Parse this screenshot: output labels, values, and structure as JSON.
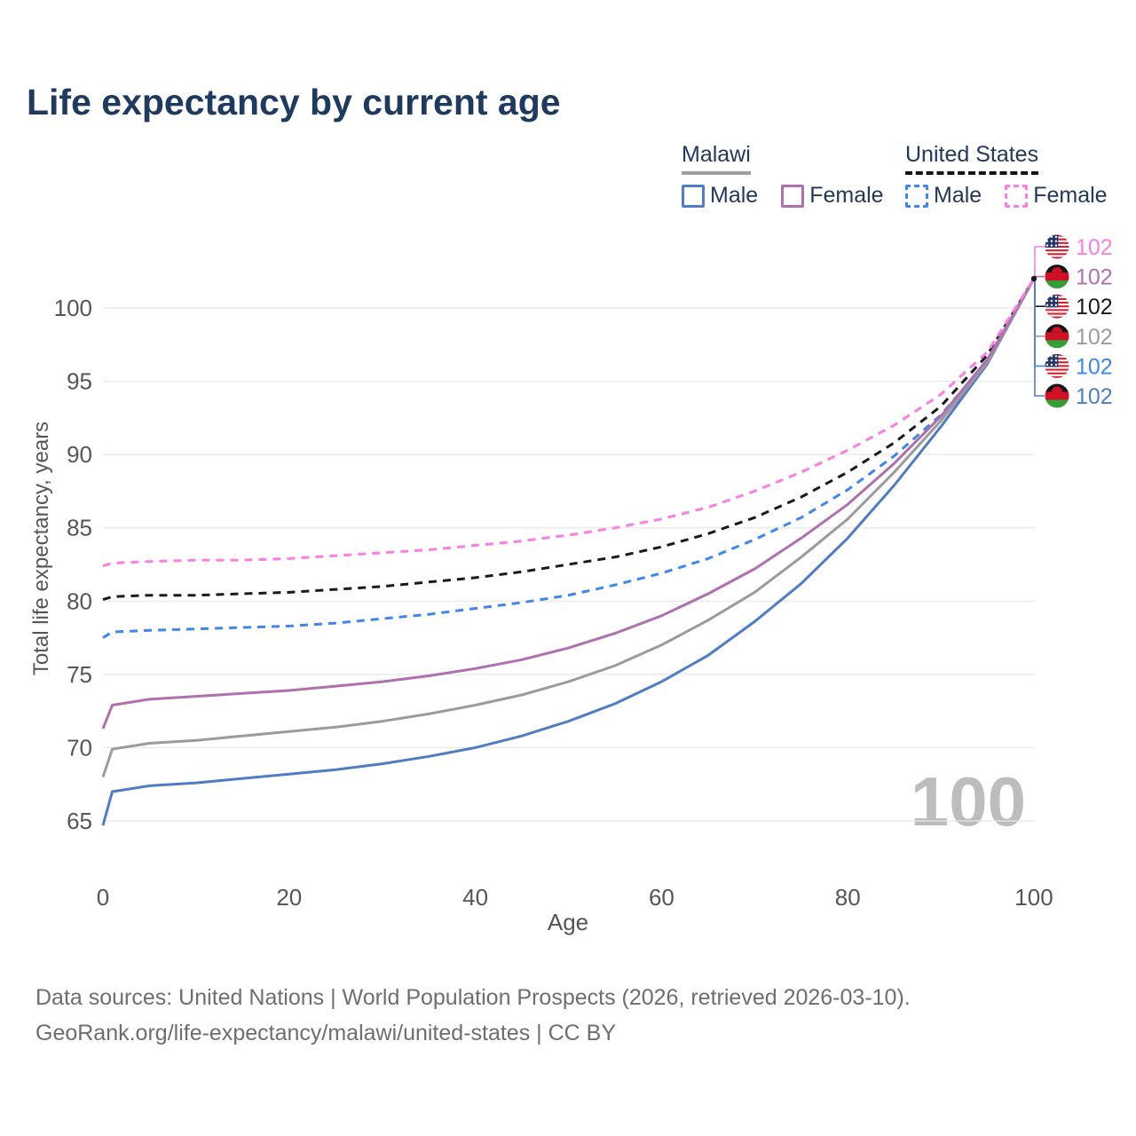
{
  "page": {
    "title": "Life expectancy by current age"
  },
  "legend": {
    "groups": [
      {
        "label": "Malawi",
        "line_style": "solid",
        "underline_color": "#9e9e9e",
        "items": [
          {
            "label": "Male",
            "color": "#4f7cc4",
            "dashed": false
          },
          {
            "label": "Female",
            "color": "#b06fae",
            "dashed": false
          }
        ]
      },
      {
        "label": "United States",
        "line_style": "dashed",
        "underline_color": "#141414",
        "items": [
          {
            "label": "Male",
            "color": "#3e86f0",
            "dashed": true
          },
          {
            "label": "Female",
            "color": "#fb7ee2",
            "dashed": true
          }
        ]
      }
    ]
  },
  "chart_data": {
    "type": "line",
    "title": "Life expectancy by current age",
    "xlabel": "Age",
    "ylabel": "Total life expectancy, years",
    "xlim": [
      0,
      100
    ],
    "ylim": [
      63.5,
      103
    ],
    "xticks": [
      0,
      20,
      40,
      60,
      80,
      100
    ],
    "yticks": [
      65,
      70,
      75,
      80,
      85,
      90,
      95,
      100
    ],
    "grid": "horizontal",
    "legend_position": "top-right",
    "age_watermark": "100",
    "ages": [
      0,
      1,
      5,
      10,
      15,
      20,
      25,
      30,
      35,
      40,
      45,
      50,
      55,
      60,
      65,
      70,
      75,
      80,
      85,
      90,
      95,
      100
    ],
    "series": [
      {
        "name": "United States — Female",
        "country": "United States",
        "sex": "Female",
        "flag": "us",
        "color": "#fb7ee2",
        "dashed": true,
        "end_label": "102",
        "values": [
          82.4,
          82.6,
          82.7,
          82.8,
          82.8,
          82.9,
          83.1,
          83.3,
          83.5,
          83.8,
          84.1,
          84.5,
          85.0,
          85.6,
          86.4,
          87.5,
          88.8,
          90.3,
          92.0,
          94.1,
          97.0,
          102
        ]
      },
      {
        "name": "Malawi — Female",
        "country": "Malawi",
        "sex": "Female",
        "flag": "mw",
        "color": "#b06fae",
        "dashed": false,
        "end_label": "102",
        "values": [
          71.3,
          72.9,
          73.3,
          73.5,
          73.7,
          73.9,
          74.2,
          74.5,
          74.9,
          75.4,
          76.0,
          76.8,
          77.8,
          79.0,
          80.5,
          82.2,
          84.3,
          86.6,
          89.4,
          92.6,
          96.5,
          102
        ]
      },
      {
        "name": "United States — Both sexes",
        "country": "United States",
        "sex": "Both sexes",
        "flag": "us",
        "color": "#1a1a1a",
        "dashed": true,
        "end_label": "102",
        "values": [
          80.1,
          80.3,
          80.4,
          80.4,
          80.5,
          80.6,
          80.8,
          81.0,
          81.3,
          81.6,
          82.0,
          82.5,
          83.0,
          83.7,
          84.6,
          85.7,
          87.1,
          88.8,
          90.8,
          93.3,
          96.8,
          102
        ]
      },
      {
        "name": "Malawi — Both sexes",
        "country": "Malawi",
        "sex": "Both sexes",
        "flag": "mw",
        "color": "#9b9b9b",
        "dashed": false,
        "end_label": "102",
        "values": [
          68.0,
          69.9,
          70.3,
          70.5,
          70.8,
          71.1,
          71.4,
          71.8,
          72.3,
          72.9,
          73.6,
          74.5,
          75.6,
          77.0,
          78.7,
          80.6,
          83.0,
          85.6,
          88.8,
          92.3,
          96.3,
          102
        ]
      },
      {
        "name": "United States — Male",
        "country": "United States",
        "sex": "Male",
        "flag": "us",
        "color": "#3e86f0",
        "dashed": true,
        "end_label": "102",
        "values": [
          77.5,
          77.9,
          78.0,
          78.1,
          78.2,
          78.3,
          78.5,
          78.8,
          79.1,
          79.5,
          79.9,
          80.4,
          81.1,
          81.9,
          82.9,
          84.2,
          85.7,
          87.6,
          89.9,
          92.7,
          96.4,
          102
        ]
      },
      {
        "name": "Malawi — Male",
        "country": "Malawi",
        "sex": "Male",
        "flag": "mw",
        "color": "#4f7cc4",
        "dashed": false,
        "end_label": "102",
        "values": [
          64.7,
          67.0,
          67.4,
          67.6,
          67.9,
          68.2,
          68.5,
          68.9,
          69.4,
          70.0,
          70.8,
          71.8,
          73.0,
          74.5,
          76.3,
          78.6,
          81.2,
          84.3,
          87.9,
          91.9,
          96.2,
          102
        ]
      }
    ]
  },
  "footer": {
    "line1": "Data sources: United Nations | World Population Prospects (2026, retrieved 2026-03-10).",
    "line2": "GeoRank.org/life-expectancy/malawi/united-states | CC BY"
  }
}
